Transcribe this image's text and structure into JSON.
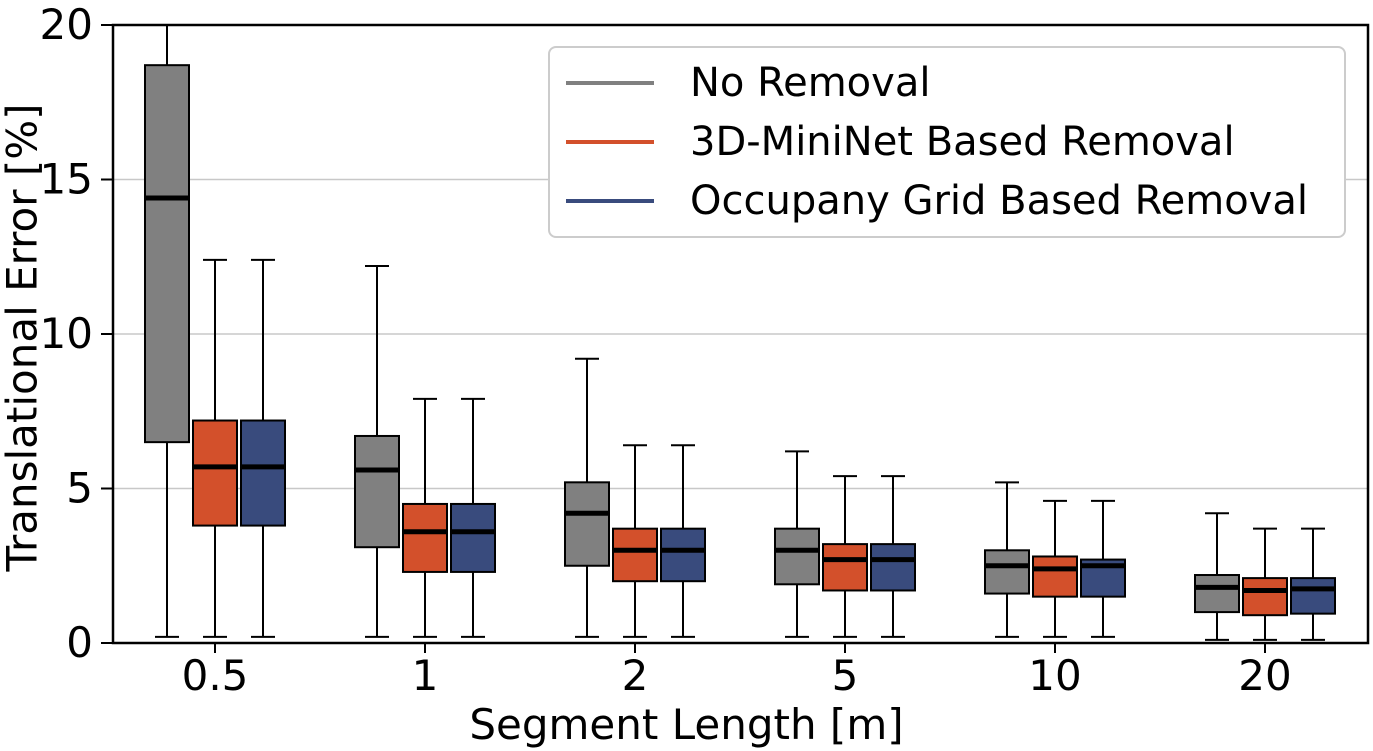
{
  "chart_data": {
    "type": "boxplot",
    "title": "",
    "xlabel": "Segment Length [m]",
    "ylabel": "Translational Error [%]",
    "categories": [
      "0.5",
      "1",
      "2",
      "5",
      "10",
      "20"
    ],
    "ylim": [
      0,
      20
    ],
    "yticks": [
      0,
      5,
      10,
      15,
      20
    ],
    "grid": "horizontal",
    "gridline_color": "#c8c8c8",
    "axis_color": "#000000",
    "box_edge_color": "#000000",
    "median_color": "#000000",
    "whisker_color": "#000000",
    "legend_position": "upper right",
    "series": [
      {
        "name": "No Removal",
        "color": "#808080",
        "boxes": [
          {
            "category": "0.5",
            "whislo": 0.2,
            "q1": 6.5,
            "med": 14.4,
            "q3": 18.7,
            "whishi": 20.0
          },
          {
            "category": "1",
            "whislo": 0.2,
            "q1": 3.1,
            "med": 5.6,
            "q3": 6.7,
            "whishi": 12.2
          },
          {
            "category": "2",
            "whislo": 0.2,
            "q1": 2.5,
            "med": 4.2,
            "q3": 5.2,
            "whishi": 9.2
          },
          {
            "category": "5",
            "whislo": 0.2,
            "q1": 1.9,
            "med": 3.0,
            "q3": 3.7,
            "whishi": 6.2
          },
          {
            "category": "10",
            "whislo": 0.2,
            "q1": 1.6,
            "med": 2.5,
            "q3": 3.0,
            "whishi": 5.2
          },
          {
            "category": "20",
            "whislo": 0.1,
            "q1": 1.0,
            "med": 1.8,
            "q3": 2.2,
            "whishi": 4.2
          }
        ]
      },
      {
        "name": "3D-MiniNet Based Removal",
        "color": "#d3502b",
        "boxes": [
          {
            "category": "0.5",
            "whislo": 0.2,
            "q1": 3.8,
            "med": 5.7,
            "q3": 7.2,
            "whishi": 12.4
          },
          {
            "category": "1",
            "whislo": 0.2,
            "q1": 2.3,
            "med": 3.6,
            "q3": 4.5,
            "whishi": 7.9
          },
          {
            "category": "2",
            "whislo": 0.2,
            "q1": 2.0,
            "med": 3.0,
            "q3": 3.7,
            "whishi": 6.4
          },
          {
            "category": "5",
            "whislo": 0.2,
            "q1": 1.7,
            "med": 2.7,
            "q3": 3.2,
            "whishi": 5.4
          },
          {
            "category": "10",
            "whislo": 0.2,
            "q1": 1.5,
            "med": 2.4,
            "q3": 2.8,
            "whishi": 4.6
          },
          {
            "category": "20",
            "whislo": 0.1,
            "q1": 0.9,
            "med": 1.7,
            "q3": 2.1,
            "whishi": 3.7
          }
        ]
      },
      {
        "name": "Occupany Grid Based Removal",
        "color": "#394b7d",
        "boxes": [
          {
            "category": "0.5",
            "whislo": 0.2,
            "q1": 3.8,
            "med": 5.7,
            "q3": 7.2,
            "whishi": 12.4
          },
          {
            "category": "1",
            "whislo": 0.2,
            "q1": 2.3,
            "med": 3.6,
            "q3": 4.5,
            "whishi": 7.9
          },
          {
            "category": "2",
            "whislo": 0.2,
            "q1": 2.0,
            "med": 3.0,
            "q3": 3.7,
            "whishi": 6.4
          },
          {
            "category": "5",
            "whislo": 0.2,
            "q1": 1.7,
            "med": 2.7,
            "q3": 3.2,
            "whishi": 5.4
          },
          {
            "category": "10",
            "whislo": 0.2,
            "q1": 1.5,
            "med": 2.5,
            "q3": 2.7,
            "whishi": 4.6
          },
          {
            "category": "20",
            "whislo": 0.1,
            "q1": 0.95,
            "med": 1.75,
            "q3": 2.1,
            "whishi": 3.7
          }
        ]
      }
    ]
  }
}
